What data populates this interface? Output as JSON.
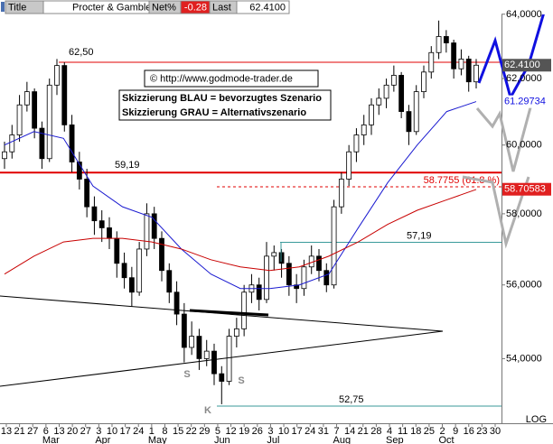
{
  "header": {
    "title_label": "Title",
    "name": "Procter & Gamble",
    "net_label": "Net%",
    "net": "-0.28",
    "last_label": "Last",
    "last": "62.4100"
  },
  "chart_data": {
    "type": "candlestick",
    "log": true,
    "ylim": [
      52.33,
      64.45
    ],
    "yticks": [
      {
        "value": 54,
        "label": "54,0000"
      },
      {
        "value": 56,
        "label": "56,0000"
      },
      {
        "value": 58,
        "label": "58,0000"
      },
      {
        "value": 60,
        "label": "60,0000"
      },
      {
        "value": 62,
        "label": "62,0000"
      },
      {
        "value": 64,
        "label": "64,0000"
      }
    ],
    "scale_label": "LOG",
    "categories": [
      "13",
      "21",
      "27",
      "6",
      "13",
      "20",
      "27",
      "3",
      "10",
      "17",
      "24",
      "1",
      "8",
      "15",
      "22",
      "29",
      "5",
      "12",
      "19",
      "26",
      "3",
      "10",
      "17",
      "24",
      "31",
      "7",
      "14",
      "21",
      "28",
      "4",
      "11",
      "18",
      "25",
      "2",
      "9",
      "16",
      "23",
      "30"
    ],
    "months": [
      "Mar",
      "Apr",
      "May",
      "Jun",
      "Jul",
      "Aug",
      "Sep",
      "Oct"
    ],
    "candles": [
      [
        59.6,
        60.1,
        59.3,
        59.8
      ],
      [
        59.8,
        60.6,
        59.6,
        60.3
      ],
      [
        60.3,
        61.5,
        60.1,
        61.2
      ],
      [
        61.2,
        61.9,
        61.0,
        61.6
      ],
      [
        61.6,
        61.7,
        60.2,
        60.5
      ],
      [
        60.5,
        60.7,
        59.3,
        59.6
      ],
      [
        59.6,
        62.0,
        59.5,
        61.8
      ],
      [
        61.8,
        62.6,
        61.5,
        62.4
      ],
      [
        62.4,
        62.5,
        60.4,
        60.6
      ],
      [
        60.6,
        60.9,
        59.2,
        59.5
      ],
      [
        59.5,
        59.8,
        58.7,
        59.0
      ],
      [
        59.0,
        59.3,
        57.9,
        58.2
      ],
      [
        58.2,
        58.5,
        57.4,
        57.8
      ],
      [
        57.8,
        58.1,
        57.2,
        57.6
      ],
      [
        57.6,
        57.9,
        57.0,
        57.3
      ],
      [
        57.3,
        57.5,
        56.2,
        56.6
      ],
      [
        56.6,
        56.9,
        55.9,
        56.2
      ],
      [
        56.2,
        56.5,
        55.4,
        55.8
      ],
      [
        55.8,
        57.2,
        55.7,
        57.0
      ],
      [
        57.0,
        58.3,
        56.8,
        58.0
      ],
      [
        58.0,
        58.2,
        57.0,
        57.3
      ],
      [
        57.3,
        57.5,
        56.1,
        56.4
      ],
      [
        56.4,
        56.6,
        55.5,
        55.8
      ],
      [
        55.8,
        56.1,
        54.9,
        55.2
      ],
      [
        55.2,
        55.5,
        53.9,
        54.3
      ],
      [
        54.3,
        55.0,
        54.1,
        54.6
      ],
      [
        54.6,
        54.8,
        53.7,
        54.0
      ],
      [
        54.0,
        54.5,
        53.8,
        54.2
      ],
      [
        54.2,
        54.4,
        53.3,
        53.6
      ],
      [
        53.6,
        53.8,
        52.8,
        53.4
      ],
      [
        53.4,
        54.8,
        53.3,
        54.6
      ],
      [
        54.6,
        55.1,
        54.3,
        54.8
      ],
      [
        54.8,
        56.0,
        54.6,
        55.8
      ],
      [
        55.8,
        56.3,
        55.5,
        56.0
      ],
      [
        56.0,
        56.2,
        55.3,
        55.6
      ],
      [
        55.6,
        57.2,
        55.5,
        56.8
      ],
      [
        56.8,
        57.1,
        56.4,
        56.9
      ],
      [
        56.9,
        57.0,
        56.2,
        56.6
      ],
      [
        56.6,
        56.8,
        55.7,
        56.0
      ],
      [
        56.0,
        56.3,
        55.5,
        55.9
      ],
      [
        55.9,
        56.7,
        55.7,
        56.5
      ],
      [
        56.5,
        57.1,
        56.3,
        56.8
      ],
      [
        56.8,
        57.0,
        56.1,
        56.4
      ],
      [
        56.4,
        56.6,
        55.8,
        56.0
      ],
      [
        56.0,
        58.4,
        55.9,
        58.2
      ],
      [
        58.2,
        59.2,
        58.0,
        59.0
      ],
      [
        59.0,
        60.0,
        58.8,
        59.8
      ],
      [
        59.8,
        60.5,
        59.5,
        60.3
      ],
      [
        60.3,
        60.9,
        60.0,
        60.6
      ],
      [
        60.6,
        61.4,
        60.3,
        61.2
      ],
      [
        61.2,
        61.7,
        60.9,
        61.4
      ],
      [
        61.4,
        62.0,
        61.1,
        61.8
      ],
      [
        61.8,
        62.4,
        61.6,
        62.1
      ],
      [
        62.1,
        62.2,
        60.8,
        61.0
      ],
      [
        61.0,
        61.2,
        60.0,
        60.4
      ],
      [
        60.4,
        61.8,
        60.3,
        61.6
      ],
      [
        61.6,
        62.4,
        61.4,
        62.2
      ],
      [
        62.2,
        63.0,
        62.0,
        62.8
      ],
      [
        62.8,
        63.8,
        62.6,
        63.3
      ],
      [
        63.3,
        63.5,
        62.8,
        63.1
      ],
      [
        63.1,
        63.2,
        62.0,
        62.3
      ],
      [
        62.3,
        62.9,
        62.1,
        62.6
      ],
      [
        62.6,
        62.7,
        61.6,
        61.9
      ],
      [
        61.9,
        62.6,
        61.7,
        62.41
      ]
    ],
    "moving_averages": [
      {
        "color": "#1a1ad0",
        "values": [
          60.0,
          60.4,
          60.2,
          58.8,
          58.2,
          57.9,
          57.0,
          56.3,
          55.9,
          55.9,
          56.0,
          56.3,
          57.6,
          58.9,
          60.0,
          61.0,
          61.3
        ]
      },
      {
        "color": "#c80000",
        "values": [
          56.3,
          56.8,
          57.2,
          57.3,
          57.3,
          57.2,
          57.0,
          56.7,
          56.5,
          56.4,
          56.5,
          56.8,
          57.2,
          57.7,
          58.1,
          58.4,
          58.7
        ]
      }
    ],
    "levels": [
      {
        "value": 62.5,
        "label": "62,50",
        "color": "#e00000"
      },
      {
        "value": 59.19,
        "label": "59,19",
        "color": "#e00000"
      },
      {
        "value": 57.19,
        "label": "57,19",
        "color": "#3a9a9a"
      },
      {
        "value": 52.75,
        "label": "52,75",
        "color": "#3a9a9a"
      }
    ],
    "fib_level": {
      "value": 58.7755,
      "label": "58.7755 (61.8 %)"
    },
    "price_boxes": [
      {
        "value": 62.41,
        "label": "62.4100"
      },
      {
        "value": 61.29734,
        "label": "61.29734"
      },
      {
        "value": 58.70583,
        "label": "58.70583"
      }
    ],
    "copyright": "© http://www.godmode-trader.de",
    "notes": [
      "Skizzierung BLAU = bevorzugtes Szenario",
      "Skizzierung GRAU = Alternativszenario"
    ],
    "pattern_labels": [
      "S",
      "S",
      "K"
    ]
  }
}
